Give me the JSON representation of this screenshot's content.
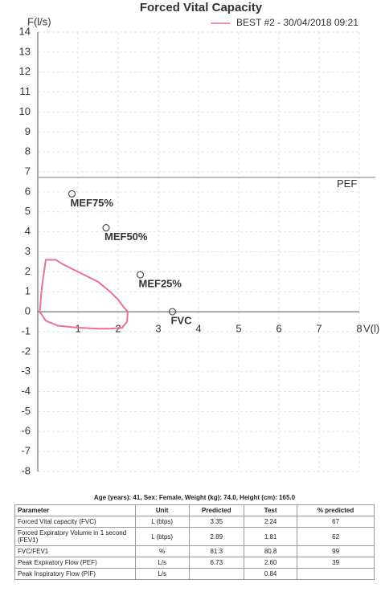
{
  "chart_data": {
    "type": "line",
    "title": "Forced Vital Capacity",
    "y_label": "F(l/s)",
    "x_label": "V(l)",
    "xlim": [
      0,
      8
    ],
    "xticks": [
      1,
      2,
      3,
      4,
      5,
      6,
      7,
      8
    ],
    "ylim": [
      -8,
      14
    ],
    "yticks": [
      -8,
      -7,
      -6,
      -5,
      -4,
      -3,
      -2,
      -1,
      0,
      1,
      2,
      3,
      4,
      5,
      6,
      7,
      8,
      9,
      10,
      11,
      12,
      13,
      14
    ],
    "grid": true,
    "legend": "top-right",
    "series": [
      {
        "name": "BEST #2 - 30/04/2018  09:21",
        "color": "#e8709a",
        "x": [
          0.05,
          0.1,
          0.2,
          0.45,
          0.6,
          0.8,
          1.0,
          1.3,
          1.5,
          1.8,
          2.0,
          2.15,
          2.24,
          2.22,
          2.1,
          1.8,
          1.5,
          1.0,
          0.5,
          0.2,
          0.05
        ],
        "values": [
          0.0,
          1.2,
          2.6,
          2.6,
          2.4,
          2.2,
          2.0,
          1.7,
          1.5,
          1.0,
          0.6,
          0.2,
          0.0,
          -0.5,
          -0.8,
          -0.85,
          -0.85,
          -0.8,
          -0.7,
          -0.45,
          0.0
        ]
      }
    ],
    "reference_lines": [
      {
        "value": 6.73,
        "label": "PEF",
        "color": "#8a9a9a"
      }
    ],
    "predicted_points": [
      {
        "label": "MEF75%",
        "x": 0.85,
        "y": 5.9
      },
      {
        "label": "MEF50%",
        "x": 1.7,
        "y": 4.2
      },
      {
        "label": "MEF25%",
        "x": 2.55,
        "y": 1.85
      },
      {
        "label": "FVC",
        "x": 3.35,
        "y": 0
      }
    ]
  },
  "table": {
    "caption": "Age (years): 41, Sex: Female, Weight (kg): 74.0, Height (cm): 165.0",
    "header": [
      "Parameter",
      "Unit",
      "Predicted",
      "Test",
      "% predicted"
    ],
    "rows": [
      [
        "Forced Vital capacity (FVC)",
        "L (btps)",
        "3.35",
        "2.24",
        "67"
      ],
      [
        "Forced Expiratory Volume in 1 second (FEV1)",
        "L (btps)",
        "2.89",
        "1.81",
        "62"
      ],
      [
        "FVC/FEV1",
        "%",
        "81.3",
        "80.8",
        "99"
      ],
      [
        "Peak Expiratory Flow (PEF)",
        "L/s",
        "6.73",
        "2.60",
        "39"
      ],
      [
        "Peak Inspiratory Flow (PIF)",
        "L/s",
        null,
        "0.84",
        null
      ]
    ]
  }
}
